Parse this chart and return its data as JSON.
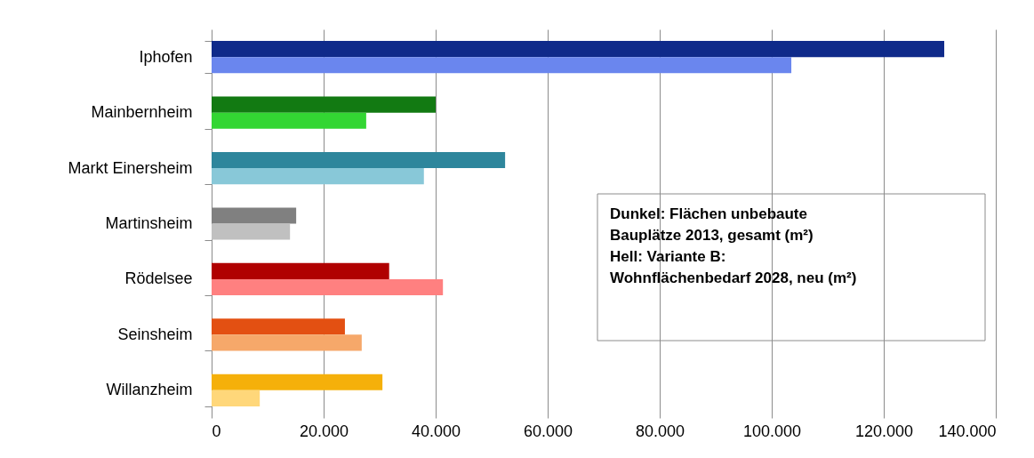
{
  "chart_data": {
    "type": "bar",
    "orientation": "horizontal",
    "categories": [
      "Iphofen",
      "Mainbernheim",
      "Markt Einersheim",
      "Martinsheim",
      "Rödelsee",
      "Seinsheim",
      "Willanzheim"
    ],
    "series": [
      {
        "colors": [
          "#0f2a8a",
          "#127a12",
          "#2e869c",
          "#808080",
          "#b00000",
          "#e35012",
          "#f5b00a"
        ],
        "values": [
          130800,
          40000,
          52400,
          15100,
          31700,
          23800,
          30500
        ]
      },
      {
        "colors": [
          "#6a86ee",
          "#33d633",
          "#88c8d8",
          "#c0c0c0",
          "#ff8080",
          "#f6a86a",
          "#ffd77a"
        ],
        "values": [
          103500,
          27600,
          37900,
          14000,
          41300,
          26800,
          8600
        ]
      }
    ],
    "xlim": [
      0,
      140000
    ],
    "xticks": [
      0,
      {
        "value": 20000,
        "label": "20.000"
      },
      {
        "value": 40000,
        "label": "40.000"
      },
      {
        "value": 60000,
        "label": "60.000"
      },
      {
        "value": 80000,
        "label": "80.000"
      },
      {
        "value": 100000,
        "label": "100.000"
      },
      {
        "value": 120000,
        "label": "120.000"
      },
      {
        "value": 140000,
        "label": "140.000"
      }
    ],
    "grid": "x",
    "legend": false,
    "annotations": [
      "Dunkel: Flächen unbebaute Bauplätze 2013, gesamt (m²)",
      "Hell: Variante B: Wohnflächenbedarf 2028, neu (m²)"
    ]
  }
}
